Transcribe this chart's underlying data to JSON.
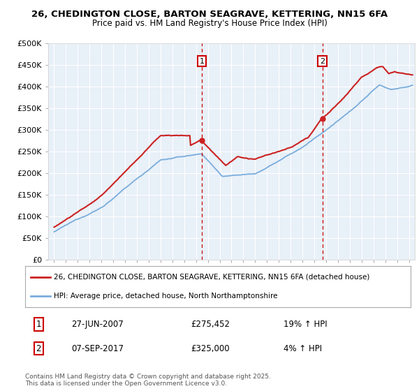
{
  "title1": "26, CHEDINGTON CLOSE, BARTON SEAGRAVE, KETTERING, NN15 6FA",
  "title2": "Price paid vs. HM Land Registry's House Price Index (HPI)",
  "ylabel_ticks": [
    "£0",
    "£50K",
    "£100K",
    "£150K",
    "£200K",
    "£250K",
    "£300K",
    "£350K",
    "£400K",
    "£450K",
    "£500K"
  ],
  "ytick_values": [
    0,
    50000,
    100000,
    150000,
    200000,
    250000,
    300000,
    350000,
    400000,
    450000,
    500000
  ],
  "xlim_start": 1994.5,
  "xlim_end": 2025.5,
  "ylim_min": 0,
  "ylim_max": 500000,
  "sale1_date": "27-JUN-2007",
  "sale1_x": 2007.49,
  "sale1_price": 275452,
  "sale1_label": "1",
  "sale1_hpi": "19% ↑ HPI",
  "sale2_date": "07-SEP-2017",
  "sale2_x": 2017.68,
  "sale2_price": 325000,
  "sale2_label": "2",
  "sale2_hpi": "4% ↑ HPI",
  "legend_line1": "26, CHEDINGTON CLOSE, BARTON SEAGRAVE, KETTERING, NN15 6FA (detached house)",
  "legend_line2": "HPI: Average price, detached house, North Northamptonshire",
  "footer": "Contains HM Land Registry data © Crown copyright and database right 2025.\nThis data is licensed under the Open Government Licence v3.0.",
  "hpi_color": "#7aaddc",
  "price_color": "#cc2222",
  "marker_box_color": "#cc0000",
  "dashed_line_color": "#cc0000",
  "bg_color": "#ffffff",
  "plot_bg": "#e8f0f8"
}
